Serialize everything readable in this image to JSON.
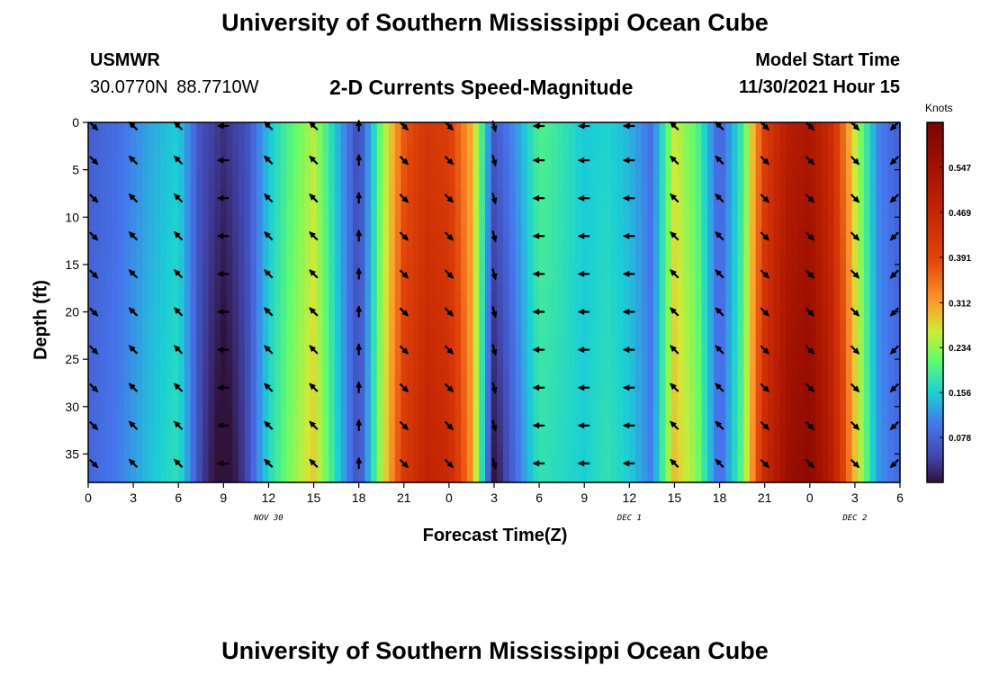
{
  "header": {
    "title": "University of Southern Mississippi Ocean Cube",
    "station_name": "USMWR",
    "station_coords": "30.0770N 88.7710W",
    "plot_title": "2-D Currents Speed-Magnitude",
    "model_label": "Model Start Time",
    "model_time": "11/30/2021 Hour 15"
  },
  "footer": {
    "title": "University of Southern Mississippi Ocean Cube"
  },
  "chart_data": {
    "type": "heatmap",
    "title": "2-D Currents Speed-Magnitude",
    "xlabel": "Forecast Time(Z)",
    "ylabel": "Depth (ft)",
    "x_tick_labels": [
      "0",
      "3",
      "6",
      "9",
      "12",
      "15",
      "18",
      "21",
      "0",
      "3",
      "6",
      "9",
      "12",
      "15",
      "18",
      "21",
      "0",
      "3",
      "6"
    ],
    "x_range_hours": [
      0,
      54
    ],
    "date_labels": [
      {
        "text": "NOV 30",
        "hour": 12
      },
      {
        "text": "DEC 1",
        "hour": 36
      },
      {
        "text": "DEC 2",
        "hour": 51
      }
    ],
    "y_ticks": [
      0,
      5,
      10,
      15,
      20,
      25,
      30,
      35
    ],
    "y_range": [
      0,
      38
    ],
    "colorbar": {
      "label": "Knots",
      "ticks": [
        0.078,
        0.156,
        0.234,
        0.312,
        0.391,
        0.469,
        0.547
      ],
      "range": [
        0.0,
        0.625
      ]
    },
    "speed_profile_hours": [
      0,
      2,
      4,
      6,
      7.5,
      9,
      10.5,
      12,
      13.5,
      15,
      16.5,
      18,
      19.5,
      21,
      22.5,
      24,
      25.5,
      27,
      28.5,
      30,
      31.5,
      33,
      34.5,
      36,
      37.5,
      39,
      40.5,
      42,
      43.5,
      45,
      46.5,
      48,
      49.5,
      51,
      52.5,
      54
    ],
    "speed_profile_knots": [
      0.08,
      0.1,
      0.14,
      0.17,
      0.06,
      0.03,
      0.06,
      0.16,
      0.22,
      0.27,
      0.16,
      0.05,
      0.24,
      0.4,
      0.46,
      0.44,
      0.32,
      0.06,
      0.1,
      0.17,
      0.16,
      0.15,
      0.17,
      0.15,
      0.1,
      0.28,
      0.22,
      0.08,
      0.2,
      0.44,
      0.54,
      0.57,
      0.48,
      0.28,
      0.12,
      0.08
    ],
    "arrow_times_hours": [
      0,
      3,
      6,
      9,
      12,
      15,
      18,
      21,
      24,
      27,
      30,
      33,
      36,
      39,
      42,
      45,
      48,
      51,
      54
    ],
    "arrow_depths_ft": [
      0,
      4,
      8,
      12,
      16,
      20,
      24,
      28,
      32,
      36
    ],
    "arrow_direction_deg": [
      135,
      315,
      315,
      270,
      315,
      315,
      0,
      135,
      135,
      165,
      270,
      270,
      270,
      315,
      315,
      135,
      135,
      135,
      225
    ]
  }
}
